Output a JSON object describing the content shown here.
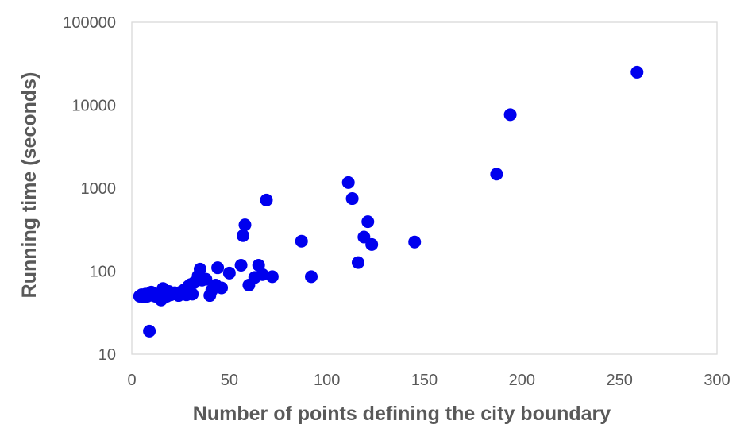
{
  "chart_data": {
    "type": "scatter",
    "title": "",
    "xlabel": "Number of points defining the city boundary",
    "ylabel": "Running time (seconds)",
    "xlim": [
      0,
      300
    ],
    "ylim": [
      10,
      100000
    ],
    "yscale": "log",
    "x_ticks": [
      "0",
      "50",
      "100",
      "150",
      "200",
      "250",
      "300"
    ],
    "y_ticks": [
      "10",
      "100",
      "1000",
      "10000",
      "100000"
    ],
    "grid": false,
    "legend": "none",
    "marker_color": "#0000ee",
    "points": [
      {
        "x": 4,
        "y": 50
      },
      {
        "x": 5,
        "y": 52
      },
      {
        "x": 6,
        "y": 49
      },
      {
        "x": 7,
        "y": 53
      },
      {
        "x": 8,
        "y": 50
      },
      {
        "x": 9,
        "y": 19
      },
      {
        "x": 10,
        "y": 56
      },
      {
        "x": 11,
        "y": 51
      },
      {
        "x": 12,
        "y": 50
      },
      {
        "x": 13,
        "y": 53
      },
      {
        "x": 14,
        "y": 52
      },
      {
        "x": 15,
        "y": 45
      },
      {
        "x": 16,
        "y": 62
      },
      {
        "x": 17,
        "y": 55
      },
      {
        "x": 18,
        "y": 50
      },
      {
        "x": 19,
        "y": 57
      },
      {
        "x": 20,
        "y": 52
      },
      {
        "x": 21,
        "y": 54
      },
      {
        "x": 22,
        "y": 55
      },
      {
        "x": 23,
        "y": 53
      },
      {
        "x": 24,
        "y": 51
      },
      {
        "x": 25,
        "y": 56
      },
      {
        "x": 26,
        "y": 54
      },
      {
        "x": 27,
        "y": 60
      },
      {
        "x": 28,
        "y": 52
      },
      {
        "x": 29,
        "y": 66
      },
      {
        "x": 30,
        "y": 69
      },
      {
        "x": 31,
        "y": 53
      },
      {
        "x": 32,
        "y": 73
      },
      {
        "x": 34,
        "y": 88
      },
      {
        "x": 35,
        "y": 106
      },
      {
        "x": 36,
        "y": 78
      },
      {
        "x": 38,
        "y": 80
      },
      {
        "x": 40,
        "y": 51
      },
      {
        "x": 41,
        "y": 59
      },
      {
        "x": 43,
        "y": 68
      },
      {
        "x": 44,
        "y": 110
      },
      {
        "x": 46,
        "y": 63
      },
      {
        "x": 50,
        "y": 95
      },
      {
        "x": 56,
        "y": 118
      },
      {
        "x": 57,
        "y": 268
      },
      {
        "x": 58,
        "y": 362
      },
      {
        "x": 60,
        "y": 68
      },
      {
        "x": 63,
        "y": 84
      },
      {
        "x": 65,
        "y": 118
      },
      {
        "x": 67,
        "y": 91
      },
      {
        "x": 69,
        "y": 720
      },
      {
        "x": 72,
        "y": 86
      },
      {
        "x": 87,
        "y": 230
      },
      {
        "x": 92,
        "y": 86
      },
      {
        "x": 111,
        "y": 1170
      },
      {
        "x": 113,
        "y": 750
      },
      {
        "x": 116,
        "y": 127
      },
      {
        "x": 119,
        "y": 258
      },
      {
        "x": 121,
        "y": 395
      },
      {
        "x": 123,
        "y": 210
      },
      {
        "x": 145,
        "y": 225
      },
      {
        "x": 187,
        "y": 1480
      },
      {
        "x": 194,
        "y": 7700
      },
      {
        "x": 259,
        "y": 25000
      }
    ]
  }
}
